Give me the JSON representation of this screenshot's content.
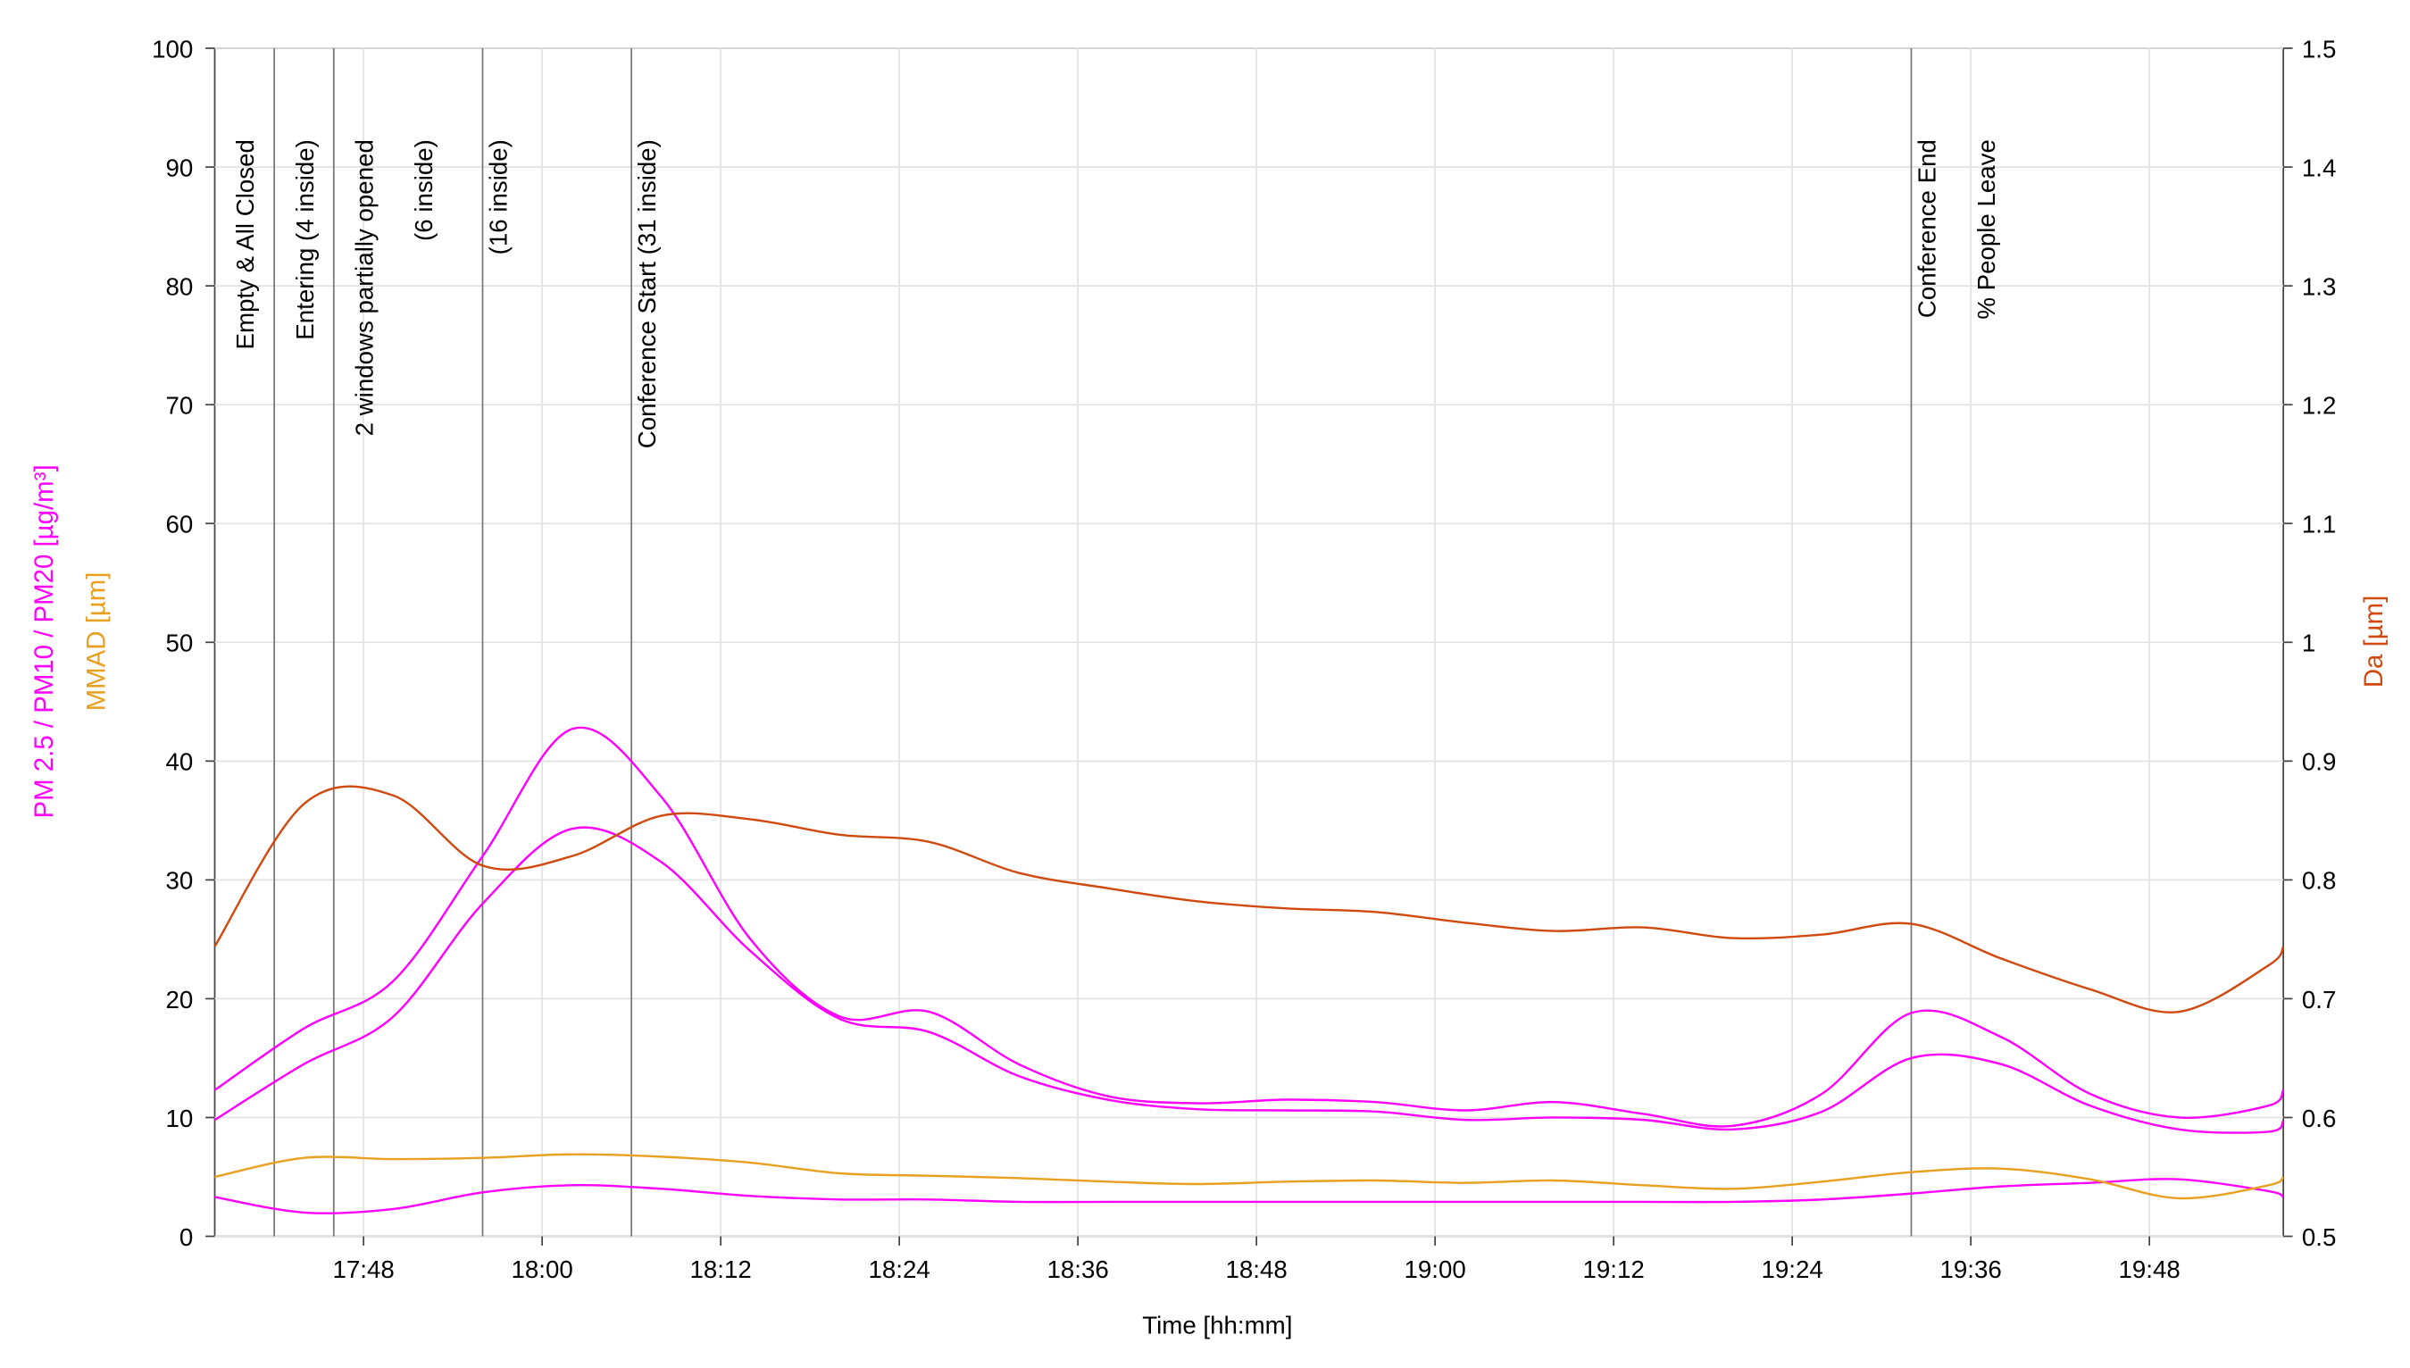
{
  "chart_data": {
    "type": "line",
    "xlabel": "Time [hh:mm]",
    "ylabel": "PM 2.5 / PM10 / PM20 [µg/m³]",
    "ylabel_mmad": "MMAD [µm]",
    "y2label": "Da [µm]",
    "xlim": [
      "17:38",
      "19:57"
    ],
    "xticks": [
      "17:48",
      "18:00",
      "18:12",
      "18:24",
      "18:36",
      "18:48",
      "19:00",
      "19:12",
      "19:24",
      "19:36",
      "19:48"
    ],
    "ylim": [
      0,
      100
    ],
    "yticks": [
      0,
      10,
      20,
      30,
      40,
      50,
      60,
      70,
      80,
      90,
      100
    ],
    "y2lim": [
      0.5,
      1.5
    ],
    "y2ticks": [
      0.5,
      0.6,
      0.7,
      0.8,
      0.9,
      1,
      1.1,
      1.2,
      1.3,
      1.4,
      1.5
    ],
    "grid": true,
    "event_lines": [
      "17:42",
      "17:46",
      "17:56",
      "18:06",
      "19:32"
    ],
    "annotations": [
      {
        "time": "17:40",
        "text": "Empty & All Closed"
      },
      {
        "time": "17:44",
        "text": "Entering (4 inside)"
      },
      {
        "time": "17:48",
        "text": "2 windows partially opened"
      },
      {
        "time": "17:52",
        "text": "(6 inside)"
      },
      {
        "time": "17:57",
        "text": "(16 inside)"
      },
      {
        "time": "18:07",
        "text": "Conference Start (31 inside)"
      },
      {
        "time": "19:33",
        "text": "Conference End"
      },
      {
        "time": "19:37",
        "text": "% People Leave"
      }
    ],
    "x": [
      "17:38",
      "17:44",
      "17:50",
      "17:56",
      "18:02",
      "18:08",
      "18:14",
      "18:20",
      "18:26",
      "18:32",
      "18:38",
      "18:44",
      "18:50",
      "18:56",
      "19:02",
      "19:08",
      "19:14",
      "19:20",
      "19:26",
      "19:32",
      "19:38",
      "19:44",
      "19:50",
      "19:56",
      "19:57"
    ],
    "series": [
      {
        "color": "#ff00ff",
        "values": [
          12.3,
          17.5,
          21.5,
          32,
          42.7,
          37,
          25,
          18.5,
          18.9,
          14.5,
          11.8,
          11.2,
          11.5,
          11.3,
          10.6,
          11.3,
          10.3,
          9.3,
          12,
          18.8,
          16.8,
          12,
          10,
          11,
          12.3
        ]
      },
      {
        "color": "#ff00ff",
        "values": [
          9.8,
          14.5,
          18.5,
          28,
          34.3,
          31.5,
          24,
          18.3,
          17.2,
          13.5,
          11.5,
          10.7,
          10.6,
          10.5,
          9.8,
          10,
          9.8,
          9,
          10.5,
          15,
          14.5,
          11,
          9,
          8.8,
          9.7
        ]
      },
      {
        "color": "#ff00ff",
        "values": [
          3.3,
          2,
          2.3,
          3.7,
          4.3,
          4,
          3.4,
          3.1,
          3.1,
          2.9,
          2.9,
          2.9,
          2.9,
          2.9,
          2.9,
          2.9,
          2.9,
          2.9,
          3.1,
          3.6,
          4.2,
          4.5,
          4.8,
          3.8,
          3.3
        ]
      },
      {
        "color": "#e8a020",
        "values": [
          5,
          6.6,
          6.5,
          6.6,
          6.9,
          6.7,
          6.2,
          5.3,
          5.1,
          4.9,
          4.6,
          4.4,
          4.6,
          4.7,
          4.5,
          4.7,
          4.3,
          4,
          4.6,
          5.4,
          5.7,
          4.8,
          3.2,
          4.3,
          5
        ]
      },
      {
        "color": "#d04a10",
        "axis": "y2",
        "values": [
          0.744,
          0.864,
          0.871,
          0.812,
          0.82,
          0.854,
          0.851,
          0.838,
          0.832,
          0.806,
          0.793,
          0.782,
          0.776,
          0.773,
          0.764,
          0.757,
          0.76,
          0.751,
          0.754,
          0.763,
          0.734,
          0.708,
          0.689,
          0.728,
          0.744
        ]
      }
    ]
  }
}
